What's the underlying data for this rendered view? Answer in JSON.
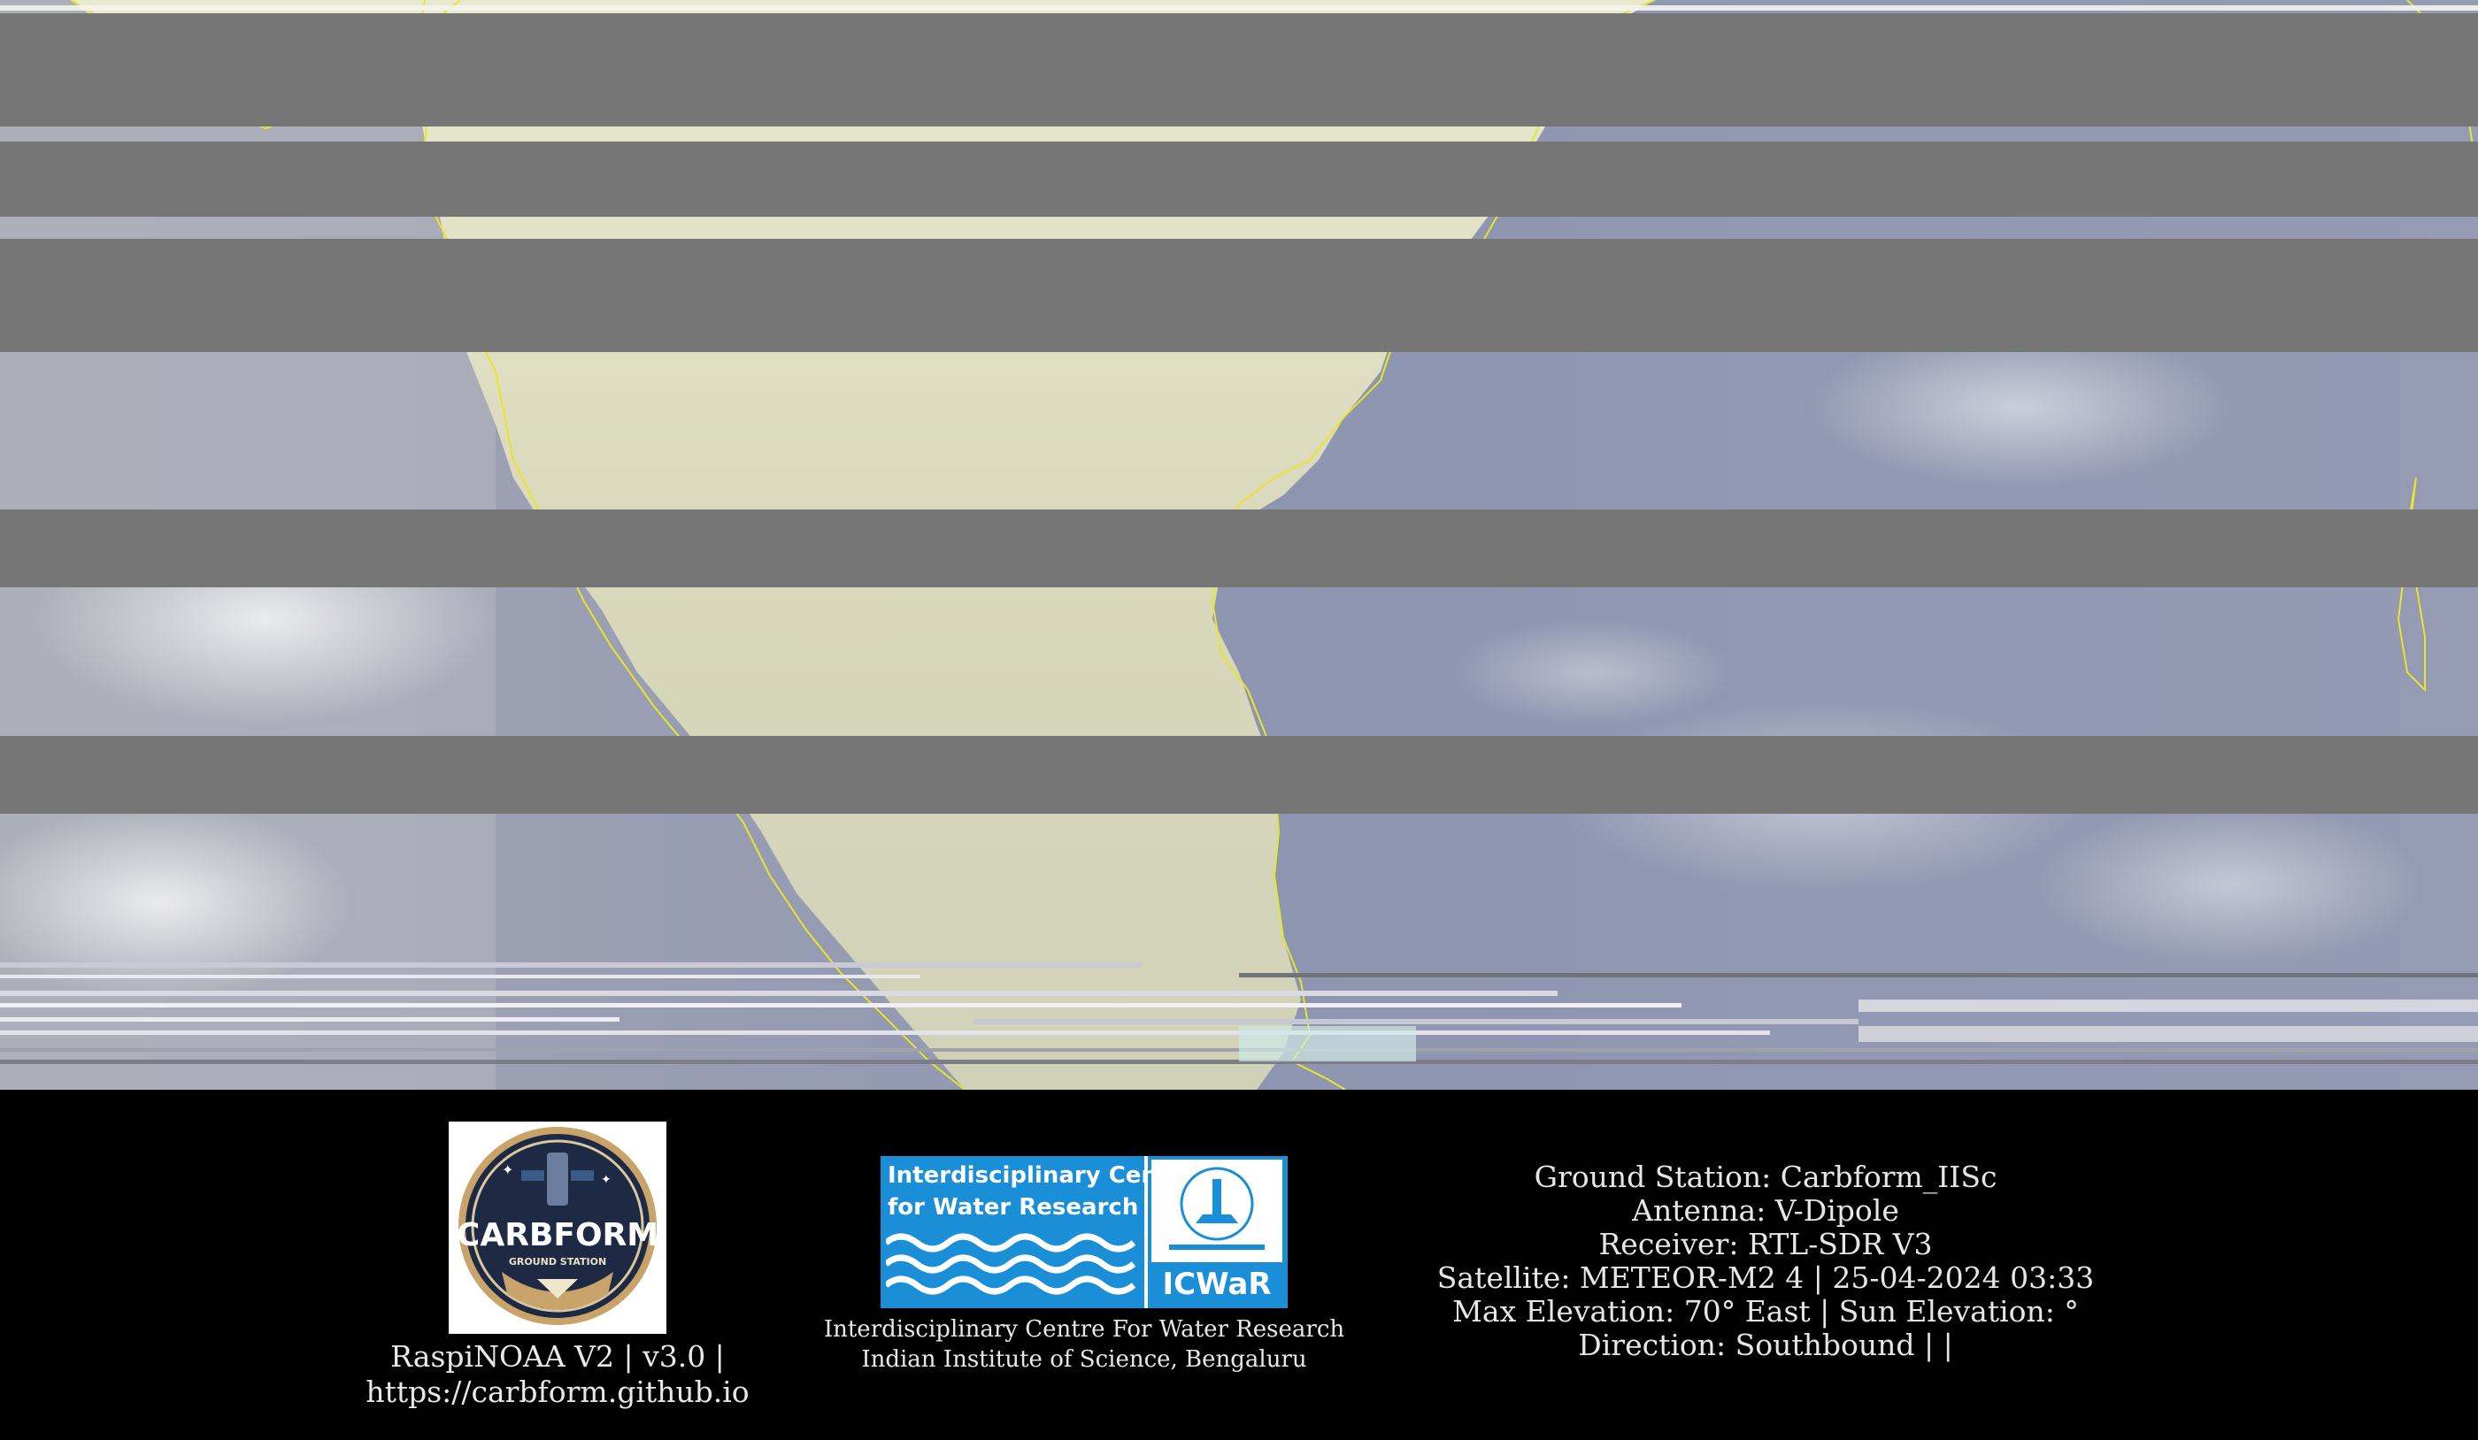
{
  "image": {
    "content": "satellite-image-south-india",
    "colors": {
      "gap": "#767676",
      "ocean": "#8c93a8",
      "land": "#d9d6ba",
      "coastline": "#e6e62a"
    }
  },
  "footer": {
    "carbform_logo": {
      "logo_text": "CARBFORM",
      "logo_subtext": "GROUND STATION",
      "caption_line1": "RaspiNOAA V2 | v3.0 |",
      "caption_line2": "https://carbform.github.io"
    },
    "icwar_logo": {
      "logo_text_line1": "Interdisciplinary Centre",
      "logo_text_line2": "for Water Research",
      "logo_badge": "ICWaR",
      "caption_line1": "Interdisciplinary Centre For Water Research",
      "caption_line2": "Indian Institute of Science, Bengaluru"
    },
    "station_info": {
      "ground_station": "Ground Station: Carbform_IISc",
      "antenna": "Antenna: V-Dipole",
      "receiver": "Receiver: RTL-SDR V3",
      "satellite": "Satellite: METEOR-M2 4 | 25-04-2024 03:33",
      "elevation": "Max Elevation: 70° East | Sun Elevation: °",
      "direction": "Direction: Southbound | |"
    }
  }
}
